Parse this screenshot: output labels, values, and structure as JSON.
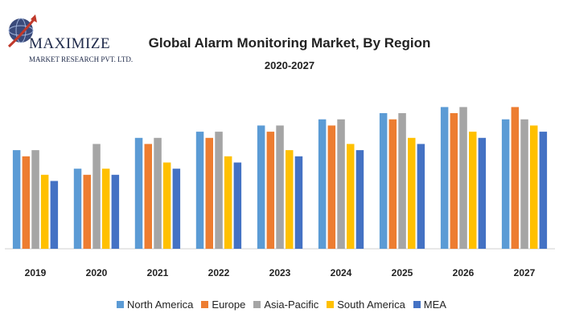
{
  "logo": {
    "name": "MAXIMIZE",
    "tagline": "MARKET RESEARCH PVT. LTD."
  },
  "chart_data": {
    "type": "bar",
    "title": "Global Alarm Monitoring Market, By Region",
    "subtitle": "2020-2027",
    "xlabel": "",
    "ylabel": "",
    "categories": [
      "2019",
      "2020",
      "2021",
      "2022",
      "2023",
      "2024",
      "2025",
      "2026",
      "2027"
    ],
    "ylim": [
      0,
      25
    ],
    "grid": false,
    "legend_position": "bottom",
    "series": [
      {
        "name": "North America",
        "color": "#5b9bd5",
        "values": [
          16,
          13,
          18,
          19,
          20,
          21,
          22,
          23,
          21
        ]
      },
      {
        "name": "Europe",
        "color": "#ed7d31",
        "values": [
          15,
          12,
          17,
          18,
          19,
          20,
          21,
          22,
          23
        ]
      },
      {
        "name": "Asia-Pacific",
        "color": "#a5a5a5",
        "values": [
          16,
          17,
          18,
          19,
          20,
          21,
          22,
          23,
          21
        ]
      },
      {
        "name": "South America",
        "color": "#ffc000",
        "values": [
          12,
          13,
          14,
          15,
          16,
          17,
          18,
          19,
          20
        ]
      },
      {
        "name": "MEA",
        "color": "#4472c4",
        "values": [
          11,
          12,
          13,
          14,
          15,
          16,
          17,
          18,
          19
        ]
      }
    ]
  }
}
